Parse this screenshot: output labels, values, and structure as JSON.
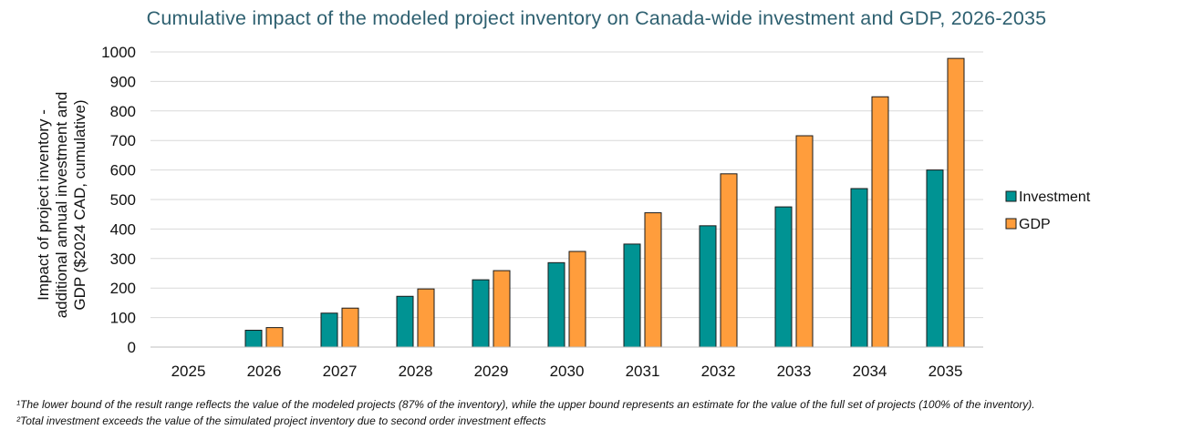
{
  "chart_data": {
    "type": "bar",
    "title": "Cumulative impact of the modeled project inventory on Canada-wide investment and GDP, 2026-2035",
    "ylabel_lines": [
      "Impact of project inventory -",
      "additional annual investment and",
      "GDP ($2024 CAD, cumulative)"
    ],
    "xlabel": "",
    "categories": [
      "2025",
      "2026",
      "2027",
      "2028",
      "2029",
      "2030",
      "2031",
      "2032",
      "2033",
      "2034",
      "2035"
    ],
    "series": [
      {
        "name": "Investment",
        "color": "#009393",
        "values": [
          0,
          57,
          115,
          172,
          228,
          286,
          349,
          411,
          475,
          537,
          600
        ]
      },
      {
        "name": "GDP",
        "color": "#ff9d3c",
        "values": [
          0,
          66,
          132,
          197,
          259,
          324,
          455,
          587,
          716,
          848,
          978
        ]
      }
    ],
    "ylim": [
      0,
      1000
    ],
    "yticks": [
      "0",
      "100",
      "200",
      "300",
      "400",
      "500",
      "600",
      "700",
      "800",
      "900",
      "1000"
    ],
    "grid": true,
    "legend_position": "right"
  },
  "footnotes": [
    "¹The lower bound of the result range reflects the value of the modeled projects (87% of the inventory), while the upper bound represents an estimate for the value of the full set of projects (100% of the inventory).",
    "²Total investment exceeds the value of the simulated project inventory due to second order investment effects"
  ]
}
